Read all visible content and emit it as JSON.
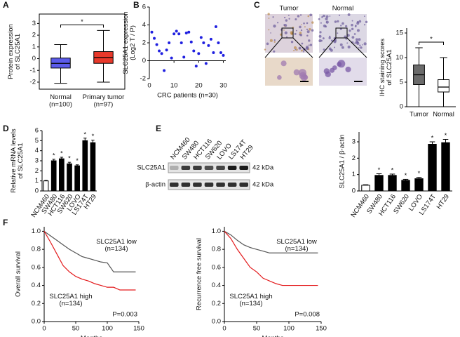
{
  "chart_data": [
    {
      "type": "box",
      "panel": "A",
      "ylabel": "Protein expression\nof SLC25A1",
      "frame": true,
      "categories": [
        "Normal\n(n=100)",
        "Primary tumor\n(n=97)"
      ],
      "boxes": [
        {
          "min": -2.1,
          "q1": -0.8,
          "median": -0.4,
          "q3": 0.05,
          "max": 1.2,
          "color": "#5b5bea"
        },
        {
          "min": -2.0,
          "q1": -0.4,
          "median": 0.1,
          "q3": 0.6,
          "max": 2.4,
          "color": "#e8392b"
        }
      ],
      "ylim": [
        -2.6,
        3.8
      ],
      "yticks": [
        -2,
        -1,
        0,
        1,
        2,
        3
      ],
      "significance": "*"
    },
    {
      "type": "scatter",
      "panel": "B",
      "ylabel": "SLC25A1 expression\n(Log2 T / P)",
      "xlabel": "CRC patients (n=30)",
      "color": "#2020e0",
      "x": [
        1,
        2,
        3,
        4,
        5,
        6,
        7,
        8,
        9,
        10,
        11,
        12,
        13,
        14,
        15,
        16,
        17,
        18,
        19,
        20,
        21,
        22,
        23,
        24,
        25,
        26,
        27,
        28,
        29,
        30
      ],
      "values": [
        3.2,
        2.5,
        1.8,
        1.1,
        0.8,
        -1.1,
        1.2,
        2.0,
        0.3,
        3.0,
        3.3,
        3.0,
        2.0,
        0.4,
        3.1,
        3.2,
        2.1,
        1.1,
        -0.6,
        0.8,
        2.6,
        2.0,
        -0.3,
        1.7,
        2.4,
        0.9,
        3.8,
        2.0,
        0.9,
        0.6
      ],
      "xlim": [
        0,
        31
      ],
      "xticks": [
        0,
        10,
        20,
        30
      ],
      "ylim": [
        -2,
        6
      ],
      "yticks": [
        -2,
        0,
        2,
        4,
        6
      ]
    },
    {
      "type": "images",
      "panel": "C",
      "labels": [
        "Tumor",
        "Normal"
      ]
    },
    {
      "type": "box",
      "ylabel": "IHC staining scores\nof SLC25A1",
      "frame": false,
      "categories": [
        "Tumor",
        "Normal"
      ],
      "boxes": [
        {
          "min": 0,
          "q1": 4.5,
          "median": 6.5,
          "q3": 8.5,
          "max": 12,
          "color": "#6b6b6b"
        },
        {
          "min": 0,
          "q1": 3,
          "median": 4,
          "q3": 5.5,
          "max": 10,
          "color": "#ffffff"
        }
      ],
      "ylim": [
        0,
        16
      ],
      "yticks": [
        0,
        5,
        10,
        15
      ],
      "significance": "*"
    },
    {
      "type": "errorbar",
      "panel": "D",
      "ylabel": "Relative mRNA levels\nof SLC25A1",
      "categories": [
        "NCM460",
        "SW480",
        "HCT116",
        "SW620",
        "LOVO",
        "LS174T",
        "HT29"
      ],
      "values": [
        1.0,
        3.0,
        3.2,
        2.7,
        2.5,
        5.0,
        4.8
      ],
      "errors": [
        0.05,
        0.15,
        0.15,
        0.15,
        0.1,
        0.25,
        0.25
      ],
      "colors": [
        "#ffffff",
        "#000000",
        "#000000",
        "#000000",
        "#000000",
        "#000000",
        "#000000"
      ],
      "significance": [
        null,
        "*",
        "*",
        "*",
        "*",
        "*",
        "*"
      ],
      "ylim": [
        0,
        6
      ],
      "yticks": [
        0,
        1,
        2,
        3,
        4,
        5,
        6
      ]
    },
    {
      "type": "blot",
      "panel": "E",
      "lanes": [
        "NCM460",
        "SW480",
        "HCT116",
        "SW620",
        "LOVO",
        "LS174T",
        "HT29"
      ],
      "rows": [
        {
          "label": "SLC25A1",
          "size": "42 kDa"
        },
        {
          "label": "β-actin",
          "size": "42 kDa"
        }
      ]
    },
    {
      "type": "errorbar",
      "ylabel": "SLC25A1 / β-actin",
      "categories": [
        "NCM460",
        "SW480",
        "HCT116",
        "SW620",
        "LOVO",
        "LS174T",
        "HT29"
      ],
      "values": [
        0.35,
        0.95,
        0.95,
        0.65,
        0.75,
        2.85,
        2.95
      ],
      "errors": [
        0.03,
        0.1,
        0.08,
        0.06,
        0.08,
        0.15,
        0.2
      ],
      "colors": [
        "#ffffff",
        "#000000",
        "#000000",
        "#000000",
        "#000000",
        "#000000",
        "#000000"
      ],
      "significance": [
        null,
        "*",
        "*",
        "*",
        "*",
        "*",
        "*"
      ],
      "ylim": [
        0,
        3.6
      ],
      "yticks": [
        0,
        1,
        2,
        3
      ]
    },
    {
      "type": "km",
      "panel": "F",
      "ylabel": "Overall survival",
      "xlabel": "Months",
      "series": [
        {
          "color": "#555555",
          "x": [
            0,
            10,
            20,
            30,
            40,
            50,
            60,
            70,
            80,
            90,
            100,
            110,
            120,
            130,
            145
          ],
          "values": [
            1.0,
            0.95,
            0.9,
            0.85,
            0.8,
            0.76,
            0.72,
            0.7,
            0.68,
            0.66,
            0.65,
            0.55,
            0.55,
            0.55,
            0.55
          ]
        },
        {
          "color": "#e31a1c",
          "x": [
            0,
            10,
            20,
            30,
            40,
            50,
            60,
            70,
            80,
            90,
            100,
            110,
            120,
            130,
            145
          ],
          "values": [
            1.0,
            0.88,
            0.75,
            0.62,
            0.55,
            0.5,
            0.47,
            0.45,
            0.42,
            0.4,
            0.38,
            0.38,
            0.35,
            0.35,
            0.35
          ]
        }
      ],
      "annotations": {
        "low": "SLC25A1 low\n(n=134)",
        "high": "SLC25A1 high\n(n=134)",
        "p": "P=0.003"
      },
      "xlim": [
        0,
        150
      ],
      "xticks": [
        0,
        50,
        100,
        150
      ],
      "ylim": [
        0,
        1.05
      ],
      "yticks": [
        {
          "value": 0,
          "label": "0.0"
        },
        0.2,
        0.4,
        0.6,
        0.8,
        {
          "value": 1,
          "label": "1.0"
        }
      ]
    },
    {
      "type": "km",
      "ylabel": "Recurrence free survival",
      "xlabel": "Months",
      "series": [
        {
          "color": "#555555",
          "x": [
            0,
            10,
            20,
            30,
            40,
            50,
            60,
            70,
            80,
            90,
            100,
            110,
            120,
            130,
            145
          ],
          "values": [
            1.0,
            0.96,
            0.9,
            0.85,
            0.82,
            0.8,
            0.78,
            0.76,
            0.76,
            0.76,
            0.76,
            0.76,
            0.76,
            0.76,
            0.76
          ]
        },
        {
          "color": "#e31a1c",
          "x": [
            0,
            10,
            20,
            30,
            40,
            50,
            60,
            70,
            80,
            90,
            100,
            110,
            120,
            130,
            145
          ],
          "values": [
            1.0,
            0.92,
            0.8,
            0.7,
            0.6,
            0.55,
            0.48,
            0.45,
            0.42,
            0.4,
            0.4,
            0.4,
            0.4,
            0.4,
            0.4
          ]
        }
      ],
      "annotations": {
        "low": "SLC25A1 low\n(n=134)",
        "high": "SLC25A1 high\n(n=134)",
        "p": "P=0.008"
      },
      "xlim": [
        0,
        150
      ],
      "xticks": [
        0,
        50,
        100,
        150
      ],
      "ylim": [
        0,
        1.05
      ],
      "yticks": [
        {
          "value": 0,
          "label": "0.0"
        },
        0.2,
        0.4,
        0.6,
        0.8,
        {
          "value": 1,
          "label": "1.0"
        }
      ]
    }
  ]
}
